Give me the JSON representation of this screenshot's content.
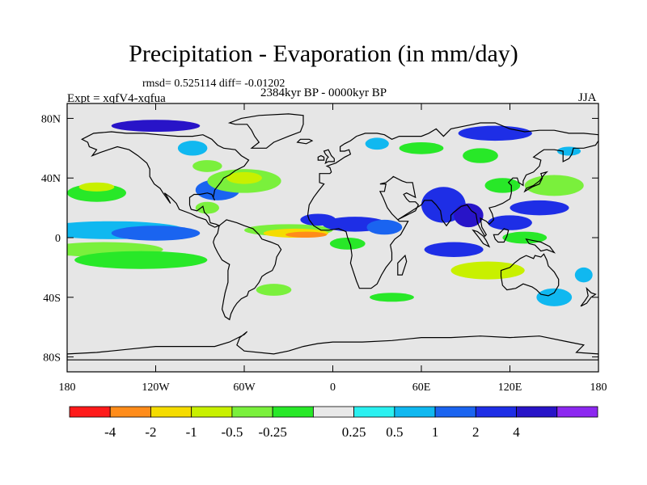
{
  "header": {
    "title": "Precipitation - Evaporation (in mm/day)",
    "stats": "rmsd= 0.525114 diff= -0.01202",
    "experiment": "Expt = xqfV4-xqfua",
    "period": "2384kyr BP - 0000kyr BP",
    "season": "JJA"
  },
  "axes": {
    "lat_ticks": [
      {
        "value": 80,
        "label": "80N"
      },
      {
        "value": 40,
        "label": "40N"
      },
      {
        "value": 0,
        "label": "0"
      },
      {
        "value": -40,
        "label": "40S"
      },
      {
        "value": -80,
        "label": "80S"
      }
    ],
    "lon_ticks": [
      {
        "value": -180,
        "label": "180"
      },
      {
        "value": -120,
        "label": "120W"
      },
      {
        "value": -60,
        "label": "60W"
      },
      {
        "value": 0,
        "label": "0"
      },
      {
        "value": 60,
        "label": "60E"
      },
      {
        "value": 120,
        "label": "120E"
      },
      {
        "value": 180,
        "label": "180"
      }
    ]
  },
  "colorbar": {
    "colors": [
      "#ff1a1a",
      "#ff8c1a",
      "#f5dc00",
      "#c8f000",
      "#7af03c",
      "#28e828",
      "#e8e8e8",
      "#2af0f0",
      "#10b8f0",
      "#1a64f0",
      "#1e2ee6",
      "#2814c8",
      "#8c28f0"
    ],
    "labels": [
      "-4",
      "-2",
      "-1",
      "-0.5",
      "-0.25",
      "0.25",
      "0.5",
      "1",
      "2",
      "4"
    ]
  },
  "map_colors": {
    "ocean": "#e6e6e6",
    "coast": "#000000"
  },
  "anomalies": [
    {
      "lon": -150,
      "lat": 5,
      "rlon": 50,
      "rlat": 6,
      "level": 8
    },
    {
      "lon": -120,
      "lat": 3,
      "rlon": 30,
      "rlat": 5,
      "level": 9
    },
    {
      "lon": -155,
      "lat": -8,
      "rlon": 40,
      "rlat": 5,
      "level": 4
    },
    {
      "lon": -130,
      "lat": -15,
      "rlon": 45,
      "rlat": 6,
      "level": 5
    },
    {
      "lon": -160,
      "lat": 30,
      "rlon": 20,
      "rlat": 6,
      "level": 5
    },
    {
      "lon": -160,
      "lat": 34,
      "rlon": 12,
      "rlat": 3,
      "level": 3
    },
    {
      "lon": -78,
      "lat": 32,
      "rlon": 15,
      "rlat": 7,
      "level": 9
    },
    {
      "lon": -60,
      "lat": 38,
      "rlon": 25,
      "rlat": 8,
      "level": 4
    },
    {
      "lon": -60,
      "lat": 40,
      "rlon": 12,
      "rlat": 4,
      "level": 3
    },
    {
      "lon": -85,
      "lat": 20,
      "rlon": 8,
      "rlat": 4,
      "level": 4
    },
    {
      "lon": -30,
      "lat": 5,
      "rlon": 30,
      "rlat": 4,
      "level": 4
    },
    {
      "lon": -25,
      "lat": 3,
      "rlon": 22,
      "rlat": 3,
      "level": 2
    },
    {
      "lon": -18,
      "lat": 2,
      "rlon": 14,
      "rlat": 2,
      "level": 1
    },
    {
      "lon": -10,
      "lat": 12,
      "rlon": 12,
      "rlat": 4,
      "level": 10
    },
    {
      "lon": 15,
      "lat": 9,
      "rlon": 22,
      "rlat": 5,
      "level": 10
    },
    {
      "lon": 35,
      "lat": 7,
      "rlon": 12,
      "rlat": 5,
      "level": 9
    },
    {
      "lon": 10,
      "lat": -4,
      "rlon": 12,
      "rlat": 4,
      "level": 5
    },
    {
      "lon": 75,
      "lat": 22,
      "rlon": 15,
      "rlat": 12,
      "level": 10
    },
    {
      "lon": 92,
      "lat": 15,
      "rlon": 10,
      "rlat": 8,
      "level": 11
    },
    {
      "lon": 82,
      "lat": -8,
      "rlon": 20,
      "rlat": 5,
      "level": 10
    },
    {
      "lon": 120,
      "lat": 10,
      "rlon": 15,
      "rlat": 5,
      "level": 10
    },
    {
      "lon": 140,
      "lat": 20,
      "rlon": 20,
      "rlat": 5,
      "level": 10
    },
    {
      "lon": 150,
      "lat": 35,
      "rlon": 20,
      "rlat": 7,
      "level": 4
    },
    {
      "lon": 115,
      "lat": 35,
      "rlon": 12,
      "rlat": 5,
      "level": 5
    },
    {
      "lon": 130,
      "lat": 0,
      "rlon": 15,
      "rlat": 4,
      "level": 5
    },
    {
      "lon": 105,
      "lat": -22,
      "rlon": 25,
      "rlat": 6,
      "level": 3
    },
    {
      "lon": 60,
      "lat": 60,
      "rlon": 15,
      "rlat": 4,
      "level": 5
    },
    {
      "lon": 100,
      "lat": 55,
      "rlon": 12,
      "rlat": 5,
      "level": 5
    },
    {
      "lon": 110,
      "lat": 70,
      "rlon": 25,
      "rlat": 5,
      "level": 10
    },
    {
      "lon": 30,
      "lat": 63,
      "rlon": 8,
      "rlat": 4,
      "level": 8
    },
    {
      "lon": 160,
      "lat": 58,
      "rlon": 8,
      "rlat": 3,
      "level": 8
    },
    {
      "lon": -120,
      "lat": 75,
      "rlon": 30,
      "rlat": 4,
      "level": 11
    },
    {
      "lon": -95,
      "lat": 60,
      "rlon": 10,
      "rlat": 5,
      "level": 8
    },
    {
      "lon": -85,
      "lat": 48,
      "rlon": 10,
      "rlat": 4,
      "level": 4
    },
    {
      "lon": -40,
      "lat": -35,
      "rlon": 12,
      "rlat": 4,
      "level": 4
    },
    {
      "lon": 40,
      "lat": -40,
      "rlon": 15,
      "rlat": 3,
      "level": 5
    },
    {
      "lon": 150,
      "lat": -40,
      "rlon": 12,
      "rlat": 6,
      "level": 8
    },
    {
      "lon": 170,
      "lat": -25,
      "rlon": 6,
      "rlat": 5,
      "level": 8
    }
  ]
}
